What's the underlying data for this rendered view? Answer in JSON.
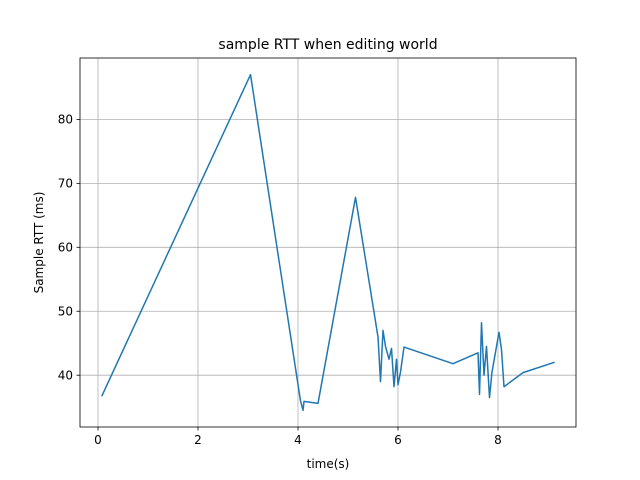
{
  "chart_data": {
    "type": "line",
    "title": "sample RTT when editing world",
    "xlabel": "time(s)",
    "ylabel": "Sample RTT (ms)",
    "xlim": [
      -0.36,
      9.56
    ],
    "ylim": [
      31.9,
      89.6
    ],
    "xticks": [
      0,
      2,
      4,
      6,
      8
    ],
    "yticks": [
      40,
      50,
      60,
      70,
      80
    ],
    "grid": true,
    "series": [
      {
        "color": "#1f77b4",
        "x": [
          0.08,
          3.05,
          4.05,
          4.1,
          4.12,
          4.4,
          5.15,
          5.6,
          5.65,
          5.7,
          5.75,
          5.82,
          5.87,
          5.92,
          5.97,
          6.0,
          6.05,
          6.12,
          7.1,
          7.6,
          7.63,
          7.67,
          7.72,
          7.77,
          7.83,
          7.88,
          8.02,
          8.07,
          8.12,
          8.5,
          9.12
        ],
        "y": [
          36.8,
          87.0,
          36.0,
          34.5,
          35.9,
          35.6,
          67.8,
          46.0,
          39.0,
          47.0,
          44.5,
          42.5,
          44.2,
          38.2,
          42.5,
          38.5,
          40.5,
          44.4,
          41.8,
          43.5,
          37.0,
          48.2,
          40.0,
          44.5,
          36.5,
          40.5,
          46.7,
          44.0,
          38.2,
          40.4,
          42.0
        ]
      }
    ]
  }
}
